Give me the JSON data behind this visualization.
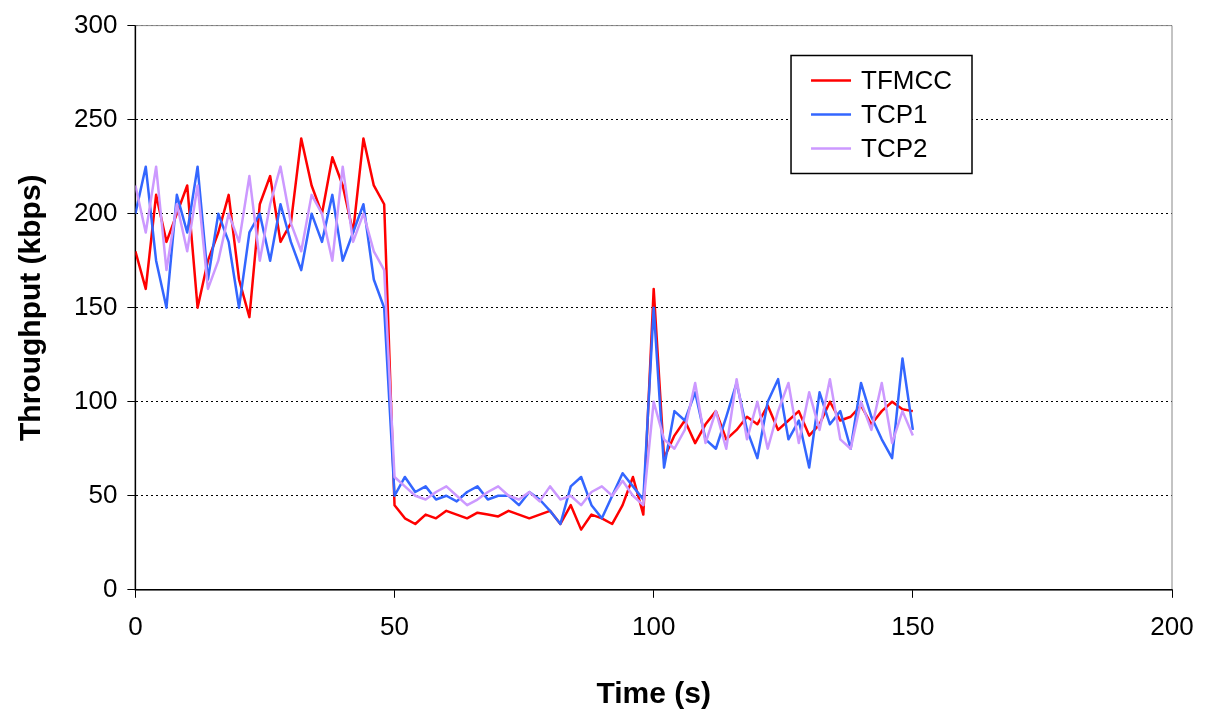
{
  "chart_data": {
    "type": "line",
    "xlabel": "Time (s)",
    "ylabel": "Throughput (kbps)",
    "x": [
      0,
      2,
      4,
      6,
      8,
      10,
      12,
      14,
      16,
      18,
      20,
      22,
      24,
      26,
      28,
      30,
      32,
      34,
      36,
      38,
      40,
      42,
      44,
      46,
      48,
      50,
      52,
      54,
      56,
      58,
      60,
      62,
      64,
      66,
      68,
      70,
      72,
      74,
      76,
      78,
      80,
      82,
      84,
      86,
      88,
      90,
      92,
      94,
      96,
      98,
      100,
      102,
      104,
      106,
      108,
      110,
      112,
      114,
      116,
      118,
      120,
      122,
      124,
      126,
      128,
      130,
      132,
      134,
      136,
      138,
      140,
      142,
      144,
      146,
      148,
      150
    ],
    "series": [
      {
        "name": "TFMCC",
        "color": "#ff0000",
        "values": [
          180,
          160,
          210,
          185,
          200,
          215,
          150,
          175,
          190,
          210,
          165,
          145,
          205,
          220,
          185,
          195,
          240,
          215,
          200,
          230,
          215,
          190,
          240,
          215,
          205,
          45,
          38,
          35,
          40,
          38,
          42,
          40,
          38,
          41,
          40,
          39,
          42,
          40,
          38,
          40,
          42,
          35,
          45,
          32,
          40,
          38,
          35,
          45,
          60,
          40,
          160,
          70,
          82,
          90,
          78,
          88,
          95,
          80,
          85,
          92,
          88,
          98,
          85,
          90,
          95,
          82,
          88,
          100,
          90,
          92,
          98,
          88,
          95,
          100,
          96,
          95
        ]
      },
      {
        "name": "TCP1",
        "color": "#3366ff",
        "values": [
          200,
          225,
          175,
          150,
          210,
          190,
          225,
          165,
          200,
          185,
          150,
          190,
          200,
          175,
          205,
          185,
          170,
          200,
          185,
          210,
          175,
          190,
          205,
          165,
          150,
          50,
          60,
          52,
          55,
          48,
          50,
          47,
          52,
          55,
          48,
          50,
          50,
          45,
          52,
          48,
          42,
          35,
          55,
          60,
          45,
          38,
          50,
          62,
          55,
          48,
          150,
          65,
          95,
          90,
          105,
          80,
          75,
          92,
          110,
          85,
          70,
          100,
          112,
          80,
          90,
          65,
          105,
          88,
          95,
          75,
          110,
          92,
          80,
          70,
          123,
          85
        ]
      },
      {
        "name": "TCP2",
        "color": "#cc99ff",
        "values": [
          215,
          190,
          225,
          170,
          205,
          180,
          215,
          160,
          175,
          200,
          185,
          220,
          175,
          205,
          225,
          195,
          180,
          210,
          200,
          175,
          225,
          185,
          200,
          180,
          170,
          60,
          55,
          50,
          48,
          52,
          55,
          50,
          45,
          48,
          52,
          55,
          50,
          48,
          52,
          47,
          55,
          48,
          50,
          45,
          52,
          55,
          50,
          58,
          50,
          45,
          100,
          80,
          75,
          85,
          110,
          78,
          95,
          75,
          112,
          80,
          100,
          75,
          95,
          110,
          78,
          105,
          85,
          112,
          80,
          75,
          100,
          85,
          110,
          78,
          95,
          82
        ]
      }
    ],
    "xlim": [
      0,
      200
    ],
    "xticks": [
      0,
      50,
      100,
      150,
      200
    ],
    "ylim": [
      0,
      300
    ],
    "yticks": [
      0,
      50,
      100,
      150,
      200,
      250,
      300
    ],
    "grid": "y",
    "legend": "top right",
    "marker": "none",
    "line_style": "solid"
  }
}
